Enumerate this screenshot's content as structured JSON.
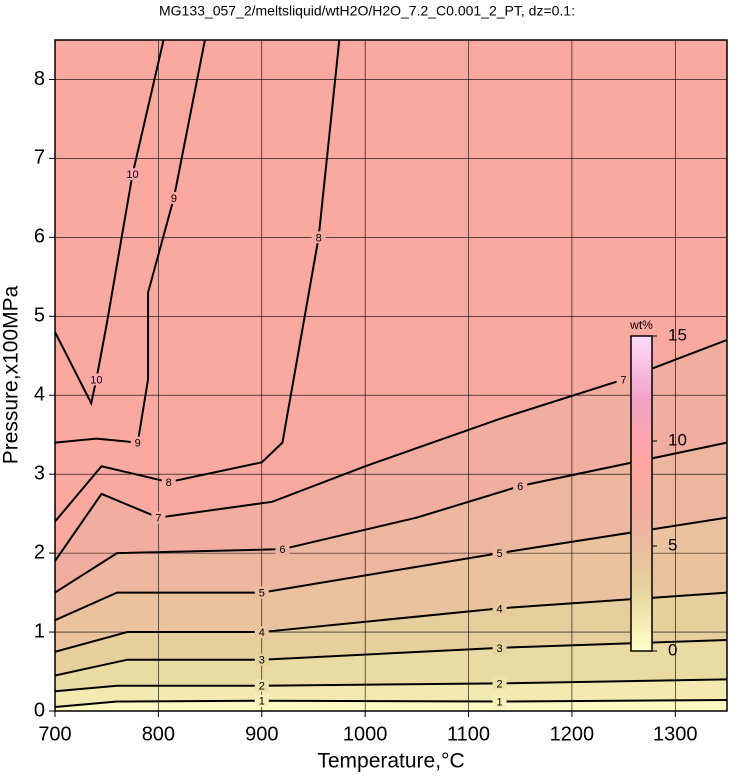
{
  "chart_data": {
    "type": "contour",
    "title": "MG133_057_2/meltsliquid/wtH2O/H2O_7.2_C0.001_2_PT, dz=0.1:",
    "xlabel": "Temperature,°C",
    "ylabel": "Pressure,x100MPa",
    "xlim": [
      700,
      1350
    ],
    "ylim": [
      0,
      8.5
    ],
    "xticks": [
      700,
      800,
      900,
      1000,
      1100,
      1200,
      1300
    ],
    "yticks": [
      0,
      1,
      2,
      3,
      4,
      5,
      6,
      7,
      8
    ],
    "grid": true,
    "colorbar": {
      "label": "wt%",
      "lim": [
        0,
        15
      ],
      "ticks": [
        0,
        5,
        10,
        15
      ],
      "colors": [
        "#ffffc8",
        "#e6d49c",
        "#eeb0a0",
        "#ffa6a0",
        "#f2a2c4",
        "#ffdcff"
      ]
    },
    "contours": [
      {
        "level": 1,
        "x": [
          700,
          760,
          900,
          1130,
          1350
        ],
        "y": [
          0.05,
          0.12,
          0.13,
          0.12,
          0.14
        ]
      },
      {
        "level": 2,
        "x": [
          700,
          760,
          900,
          1130,
          1350
        ],
        "y": [
          0.25,
          0.32,
          0.32,
          0.35,
          0.4
        ]
      },
      {
        "level": 3,
        "x": [
          700,
          770,
          900,
          1130,
          1350
        ],
        "y": [
          0.45,
          0.65,
          0.65,
          0.8,
          0.9
        ]
      },
      {
        "level": 4,
        "x": [
          700,
          770,
          900,
          1130,
          1350
        ],
        "y": [
          0.75,
          1.0,
          1.0,
          1.3,
          1.5
        ]
      },
      {
        "level": 5,
        "x": [
          700,
          760,
          900,
          1130,
          1350
        ],
        "y": [
          1.15,
          1.5,
          1.5,
          2.0,
          2.45
        ]
      },
      {
        "level": 6,
        "x": [
          700,
          760,
          920,
          1050,
          1150,
          1350
        ],
        "y": [
          1.5,
          2.0,
          2.05,
          2.45,
          2.85,
          3.4
        ]
      },
      {
        "level": 7,
        "x": [
          700,
          745,
          800,
          910,
          1000,
          1130,
          1250,
          1350
        ],
        "y": [
          1.9,
          2.75,
          2.45,
          2.65,
          3.1,
          3.7,
          4.2,
          4.7
        ]
      },
      {
        "level": 8,
        "x": [
          700,
          745,
          810,
          900,
          920,
          955,
          975
        ],
        "y": [
          2.4,
          3.1,
          2.9,
          3.15,
          3.4,
          6.0,
          8.5
        ]
      },
      {
        "level": 9,
        "x": [
          700,
          740,
          780,
          790,
          790,
          815,
          845
        ],
        "y": [
          3.4,
          3.45,
          3.4,
          4.2,
          5.3,
          6.5,
          8.5
        ]
      },
      {
        "level": 10,
        "x": [
          700,
          735,
          740,
          750,
          775,
          805
        ],
        "y": [
          4.8,
          3.9,
          4.2,
          4.9,
          6.8,
          8.5
        ]
      }
    ]
  }
}
